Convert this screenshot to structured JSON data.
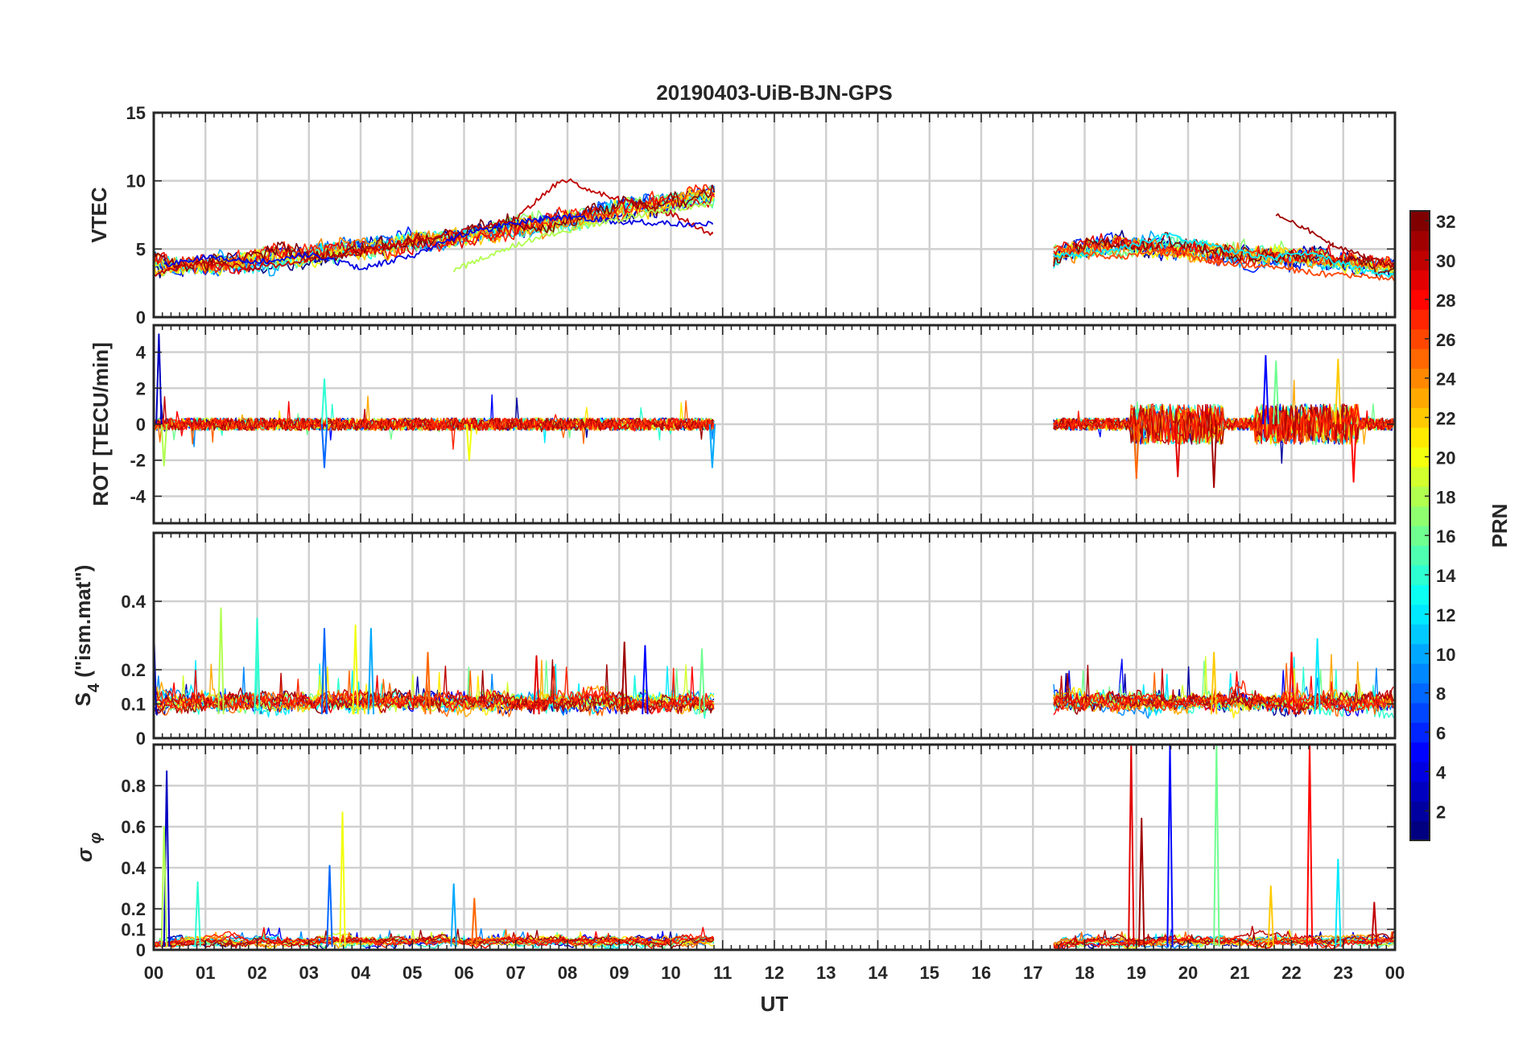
{
  "chart_data": [
    {
      "type": "line",
      "title": "20190403-UiB-BJN-GPS",
      "ylabel": "VTEC",
      "ylim": [
        0,
        15
      ],
      "yticks": [
        "0",
        "5",
        "10",
        "15"
      ],
      "data_windows_hours": [
        [
          0,
          10.85
        ],
        [
          17.4,
          24
        ]
      ],
      "series_summary": "one trace per PRN, values mostly 2-8, peak near 10.2 at 07:55",
      "traces": [
        {
          "prn": 30,
          "points": [
            [
              0,
              3.2
            ],
            [
              1,
              4.0
            ],
            [
              2,
              3.6
            ],
            [
              3,
              4.3
            ],
            [
              4,
              4.8
            ],
            [
              5,
              5.6
            ],
            [
              6,
              6.4
            ],
            [
              7,
              7.2
            ],
            [
              7.9,
              10.2
            ],
            [
              9,
              8.6
            ],
            [
              10,
              7.6
            ],
            [
              10.8,
              6.1
            ]
          ]
        },
        {
          "prn": 4,
          "points": [
            [
              0.2,
              3.8
            ],
            [
              1,
              4.4
            ],
            [
              2,
              4.0
            ],
            [
              3,
              4.6
            ],
            [
              4,
              3.6
            ],
            [
              5,
              4.5
            ],
            [
              6,
              6.1
            ],
            [
              7,
              6.9
            ],
            [
              8,
              7.4
            ],
            [
              9,
              7.0
            ],
            [
              10.8,
              6.8
            ]
          ]
        },
        {
          "prn": 18,
          "points": [
            [
              5.8,
              3.4
            ],
            [
              6.5,
              4.6
            ],
            [
              7.5,
              5.9
            ],
            [
              8.5,
              6.8
            ],
            [
              9.5,
              7.6
            ],
            [
              10.8,
              8.3
            ]
          ]
        },
        {
          "prn": 12,
          "points": [
            [
              17.4,
              4.5
            ],
            [
              18.5,
              4.8
            ],
            [
              19.6,
              6.0
            ],
            [
              20.5,
              5.2
            ],
            [
              21.5,
              4.3
            ],
            [
              22.4,
              4.7
            ],
            [
              23.2,
              3.6
            ],
            [
              24,
              3.0
            ]
          ]
        },
        {
          "prn": 26,
          "points": [
            [
              17.4,
              5.2
            ],
            [
              18.5,
              4.3
            ],
            [
              19.6,
              4.9
            ],
            [
              20.5,
              4.0
            ],
            [
              21.5,
              3.7
            ],
            [
              22.5,
              3.2
            ],
            [
              24,
              2.8
            ]
          ]
        },
        {
          "prn": 31,
          "points": [
            [
              21.7,
              7.6
            ],
            [
              22.2,
              6.6
            ],
            [
              22.8,
              5.3
            ],
            [
              23.4,
              4.4
            ],
            [
              24,
              3.7
            ]
          ]
        }
      ]
    },
    {
      "type": "line",
      "ylabel": "ROT [TECU/min]",
      "ylim": [
        -5.5,
        5.5
      ],
      "yticks": [
        "-4",
        "-2",
        "0",
        "2",
        "4"
      ],
      "data_windows_hours": [
        [
          0,
          10.85
        ],
        [
          17.4,
          24
        ]
      ],
      "spikes": [
        [
          0.1,
          5.0
        ],
        [
          0.2,
          -2.3
        ],
        [
          3.3,
          2.5
        ],
        [
          3.3,
          -2.4
        ],
        [
          6.1,
          -2.0
        ],
        [
          10.8,
          -2.4
        ],
        [
          19.0,
          -3.0
        ],
        [
          19.8,
          -2.9
        ],
        [
          20.5,
          -3.5
        ],
        [
          21.5,
          3.8
        ],
        [
          21.7,
          3.5
        ],
        [
          22.9,
          3.6
        ],
        [
          23.2,
          -3.2
        ]
      ]
    },
    {
      "type": "line",
      "ylabel": "S4 (\"ism.mat\")",
      "ylim": [
        0,
        0.6
      ],
      "yticks": [
        "0",
        "0.1",
        "0.2",
        "0.4"
      ],
      "data_windows_hours": [
        [
          0,
          10.85
        ],
        [
          17.4,
          24
        ]
      ],
      "peaks": [
        [
          0.0,
          0.32
        ],
        [
          1.3,
          0.38
        ],
        [
          2.0,
          0.35
        ],
        [
          3.3,
          0.32
        ],
        [
          3.9,
          0.33
        ],
        [
          4.2,
          0.32
        ],
        [
          5.3,
          0.25
        ],
        [
          7.4,
          0.24
        ],
        [
          9.1,
          0.28
        ],
        [
          9.5,
          0.27
        ],
        [
          10.6,
          0.26
        ],
        [
          20.5,
          0.25
        ],
        [
          22.0,
          0.25
        ],
        [
          22.5,
          0.29
        ]
      ]
    },
    {
      "type": "line",
      "ylabel": "σ φ",
      "ylim": [
        0,
        1.0
      ],
      "yticks": [
        "0",
        "0.1",
        "0.2",
        "0.4",
        "0.6",
        "0.8"
      ],
      "data_windows_hours": [
        [
          0,
          10.85
        ],
        [
          17.4,
          24
        ]
      ],
      "peaks": [
        [
          0.25,
          0.87
        ],
        [
          0.2,
          0.6
        ],
        [
          0.85,
          0.33
        ],
        [
          3.4,
          0.41
        ],
        [
          3.65,
          0.67
        ],
        [
          5.8,
          0.32
        ],
        [
          6.2,
          0.25
        ],
        [
          18.9,
          1.0
        ],
        [
          19.1,
          0.64
        ],
        [
          19.65,
          1.0
        ],
        [
          20.55,
          1.0
        ],
        [
          21.6,
          0.31
        ],
        [
          22.35,
          1.0
        ],
        [
          22.9,
          0.44
        ],
        [
          23.6,
          0.23
        ]
      ]
    }
  ],
  "x_axis": {
    "label": "UT",
    "ticks": [
      "00",
      "01",
      "02",
      "03",
      "04",
      "05",
      "06",
      "07",
      "08",
      "09",
      "10",
      "11",
      "12",
      "13",
      "14",
      "15",
      "16",
      "17",
      "18",
      "19",
      "20",
      "21",
      "22",
      "23",
      "00"
    ]
  },
  "colorbar": {
    "label": "PRN",
    "range": [
      1,
      32
    ],
    "ticks": [
      "2",
      "4",
      "6",
      "8",
      "10",
      "12",
      "14",
      "16",
      "18",
      "20",
      "22",
      "24",
      "26",
      "28",
      "30",
      "32"
    ],
    "colormap": "jet"
  }
}
